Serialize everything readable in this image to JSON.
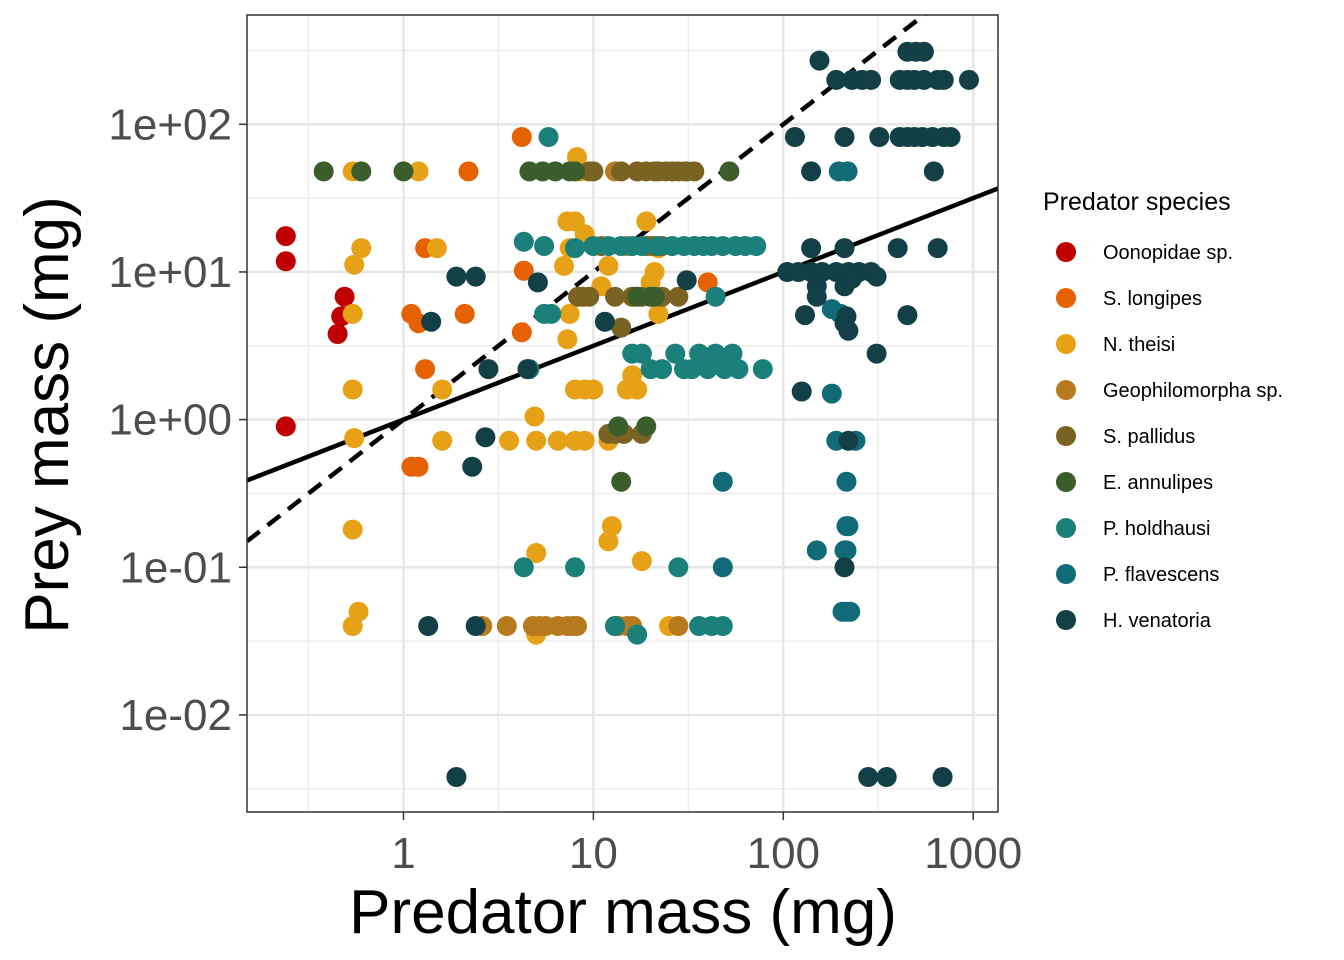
{
  "chart_data": {
    "type": "scatter",
    "xlabel": "Predator mass (mg)",
    "ylabel": "Prey mass (mg)",
    "xscale": "log10",
    "yscale": "log10",
    "xlim": [
      0.15,
      1350
    ],
    "ylim": [
      0.0022,
      550
    ],
    "x_ticks": [
      1,
      10,
      100,
      1000
    ],
    "x_tick_labels": [
      "1",
      "10",
      "100",
      "1000"
    ],
    "y_ticks": [
      0.01,
      0.1,
      1,
      10,
      100
    ],
    "y_tick_labels": [
      "1e-02",
      "1e-01",
      "1e+00",
      "1e+01",
      "1e+02"
    ],
    "grid": true,
    "legend": {
      "title": "Predator species",
      "placement": "right"
    },
    "series": [
      {
        "name": "Oonopidae sp.",
        "color": "#C00000",
        "points": [
          [
            0.24,
            17.5
          ],
          [
            0.24,
            11.8
          ],
          [
            0.24,
            0.9
          ],
          [
            0.49,
            6.8
          ],
          [
            0.47,
            5.0
          ],
          [
            0.45,
            3.8
          ]
        ]
      },
      {
        "name": "S. longipes",
        "color": "#E66101",
        "points": [
          [
            4.2,
            82
          ],
          [
            2.2,
            48
          ],
          [
            1.3,
            14.5
          ],
          [
            4.3,
            10.2
          ],
          [
            1.1,
            5.2
          ],
          [
            1.2,
            4.5
          ],
          [
            2.1,
            5.2
          ],
          [
            1.3,
            2.2
          ],
          [
            4.2,
            3.9
          ],
          [
            1.1,
            0.48
          ],
          [
            1.2,
            0.48
          ],
          [
            40,
            8.5
          ],
          [
            17,
            48
          ]
        ]
      },
      {
        "name": "N. theisi",
        "color": "#E6A117",
        "points": [
          [
            0.54,
            48
          ],
          [
            1.2,
            48
          ],
          [
            0.6,
            14.5
          ],
          [
            0.55,
            11.2
          ],
          [
            0.54,
            5.2
          ],
          [
            0.54,
            1.6
          ],
          [
            0.55,
            0.75
          ],
          [
            0.54,
            0.18
          ],
          [
            0.58,
            0.05
          ],
          [
            0.54,
            0.04
          ],
          [
            1.5,
            14.5
          ],
          [
            1.6,
            1.6
          ],
          [
            1.6,
            0.72
          ],
          [
            3.6,
            0.72
          ],
          [
            4.5,
            2.2
          ],
          [
            4.9,
            1.05
          ],
          [
            5,
            0.72
          ],
          [
            5,
            0.125
          ],
          [
            5,
            0.035
          ],
          [
            7.3,
            22
          ],
          [
            7.5,
            14.5
          ],
          [
            8,
            22
          ],
          [
            8.2,
            60
          ],
          [
            8.5,
            48
          ],
          [
            9,
            18
          ],
          [
            7,
            11
          ],
          [
            7.5,
            5.2
          ],
          [
            7.3,
            3.5
          ],
          [
            8,
            1.6
          ],
          [
            9,
            1.6
          ],
          [
            10,
            1.6
          ],
          [
            9,
            0.72
          ],
          [
            11,
            8
          ],
          [
            12,
            11
          ],
          [
            12.5,
            0.19
          ],
          [
            12,
            0.15
          ],
          [
            15,
            1.6
          ],
          [
            16,
            2
          ],
          [
            17,
            1.6
          ],
          [
            18,
            0.11
          ],
          [
            20,
            8.5
          ],
          [
            21,
            10
          ],
          [
            19,
            22
          ],
          [
            22,
            14.5
          ],
          [
            22,
            5.2
          ],
          [
            25,
            0.04
          ],
          [
            6.5,
            0.72
          ],
          [
            8,
            0.72
          ],
          [
            12,
            0.72
          ]
        ]
      },
      {
        "name": "Geophilomorpha sp.",
        "color": "#B77A1E",
        "points": [
          [
            2.6,
            0.04
          ],
          [
            3.5,
            0.04
          ],
          [
            4.8,
            0.04
          ],
          [
            5.2,
            0.04
          ],
          [
            5.6,
            0.04
          ],
          [
            6.5,
            0.04
          ],
          [
            7.3,
            0.04
          ],
          [
            7.8,
            0.04
          ],
          [
            8.2,
            0.04
          ],
          [
            13,
            0.04
          ],
          [
            13.5,
            0.04
          ],
          [
            15,
            0.04
          ],
          [
            16,
            0.04
          ],
          [
            28,
            0.04
          ],
          [
            15,
            15
          ],
          [
            20,
            15
          ],
          [
            22,
            15
          ],
          [
            13,
            48
          ],
          [
            30,
            48
          ]
        ]
      },
      {
        "name": "S. pallidus",
        "color": "#7A6322",
        "points": [
          [
            8.3,
            6.8
          ],
          [
            8.8,
            6.8
          ],
          [
            9.5,
            6.8
          ],
          [
            13,
            6.8
          ],
          [
            14,
            4.2
          ],
          [
            14.5,
            0.8
          ],
          [
            16,
            6.8
          ],
          [
            18,
            6.8
          ],
          [
            23,
            6.8
          ],
          [
            28,
            6.8
          ],
          [
            12,
            0.8
          ],
          [
            13,
            0.8
          ],
          [
            18,
            0.8
          ],
          [
            19,
            15
          ],
          [
            21,
            15
          ],
          [
            23,
            15
          ],
          [
            11,
            15
          ],
          [
            9.5,
            48
          ],
          [
            10,
            48
          ],
          [
            14,
            48
          ],
          [
            17,
            48
          ],
          [
            19,
            48
          ],
          [
            21,
            48
          ],
          [
            22,
            48
          ],
          [
            24,
            48
          ],
          [
            26,
            48
          ],
          [
            28,
            48
          ],
          [
            31,
            48
          ],
          [
            34,
            48
          ]
        ]
      },
      {
        "name": "E. annulipes",
        "color": "#3B5C2B",
        "points": [
          [
            0.38,
            48
          ],
          [
            0.6,
            48
          ],
          [
            1,
            48
          ],
          [
            4.6,
            48
          ],
          [
            5.4,
            48
          ],
          [
            6.3,
            48
          ],
          [
            7.5,
            48
          ],
          [
            8,
            48
          ],
          [
            52,
            48
          ],
          [
            14,
            0.38
          ],
          [
            13.5,
            0.9
          ],
          [
            19,
            0.9
          ],
          [
            17,
            6.8
          ],
          [
            20,
            6.8
          ],
          [
            21,
            6.8
          ]
        ]
      },
      {
        "name": "P. holdhausi",
        "color": "#1B7F7A",
        "points": [
          [
            5.8,
            82
          ],
          [
            4.3,
            16
          ],
          [
            5.5,
            15
          ],
          [
            8,
            14.5
          ],
          [
            10,
            15
          ],
          [
            12,
            15
          ],
          [
            14,
            15
          ],
          [
            16,
            15
          ],
          [
            18,
            15
          ],
          [
            22,
            15
          ],
          [
            26,
            15
          ],
          [
            30,
            15
          ],
          [
            34,
            15
          ],
          [
            38,
            15
          ],
          [
            42,
            15
          ],
          [
            48,
            15
          ],
          [
            56,
            15
          ],
          [
            63,
            15
          ],
          [
            72,
            15
          ],
          [
            4.6,
            2.2
          ],
          [
            5.5,
            5.2
          ],
          [
            6,
            5.2
          ],
          [
            16,
            2.8
          ],
          [
            20,
            2.2
          ],
          [
            23,
            2.2
          ],
          [
            27,
            2.8
          ],
          [
            30,
            2.2
          ],
          [
            33,
            2.2
          ],
          [
            36,
            2.8
          ],
          [
            40,
            2.2
          ],
          [
            44,
            2.8
          ],
          [
            49,
            2.2
          ],
          [
            54,
            2.8
          ],
          [
            58,
            2.2
          ],
          [
            78,
            2.2
          ],
          [
            4.3,
            0.1
          ],
          [
            8,
            0.1
          ],
          [
            13,
            0.04
          ],
          [
            17,
            0.035
          ],
          [
            28,
            0.1
          ],
          [
            36,
            0.04
          ],
          [
            42,
            0.04
          ],
          [
            48,
            0.04
          ],
          [
            44,
            6.8
          ],
          [
            18,
            2.8
          ]
        ]
      },
      {
        "name": "P. flavescens",
        "color": "#106A78",
        "points": [
          [
            196,
            48
          ],
          [
            218,
            48
          ],
          [
            180,
            5.6
          ],
          [
            200,
            5.2
          ],
          [
            180,
            1.5
          ],
          [
            190,
            0.72
          ],
          [
            240,
            0.72
          ],
          [
            215,
            0.38
          ],
          [
            215,
            0.19
          ],
          [
            220,
            0.19
          ],
          [
            210,
            0.13
          ],
          [
            215,
            0.13
          ],
          [
            150,
            0.13
          ],
          [
            205,
            0.05
          ],
          [
            215,
            0.05
          ],
          [
            225,
            0.05
          ],
          [
            48,
            0.38
          ],
          [
            48,
            0.1
          ]
        ]
      },
      {
        "name": "H. venatoria",
        "color": "#133F47",
        "points": [
          [
            155,
            270
          ],
          [
            190,
            200
          ],
          [
            230,
            200
          ],
          [
            260,
            200
          ],
          [
            290,
            200
          ],
          [
            410,
            200
          ],
          [
            450,
            200
          ],
          [
            490,
            200
          ],
          [
            550,
            200
          ],
          [
            650,
            200
          ],
          [
            700,
            200
          ],
          [
            950,
            200
          ],
          [
            450,
            310
          ],
          [
            500,
            310
          ],
          [
            550,
            310
          ],
          [
            115,
            82
          ],
          [
            210,
            82
          ],
          [
            320,
            82
          ],
          [
            410,
            82
          ],
          [
            450,
            82
          ],
          [
            490,
            82
          ],
          [
            540,
            82
          ],
          [
            610,
            82
          ],
          [
            700,
            82
          ],
          [
            760,
            82
          ],
          [
            140,
            48
          ],
          [
            620,
            48
          ],
          [
            1.9,
            9.3
          ],
          [
            2.4,
            9.3
          ],
          [
            1.4,
            4.6
          ],
          [
            5.1,
            8.5
          ],
          [
            11.5,
            4.6
          ],
          [
            31,
            8.8
          ],
          [
            105,
            10
          ],
          [
            120,
            10
          ],
          [
            140,
            10
          ],
          [
            160,
            10
          ],
          [
            190,
            10
          ],
          [
            220,
            10
          ],
          [
            250,
            10
          ],
          [
            290,
            10
          ],
          [
            310,
            9.3
          ],
          [
            140,
            14.5
          ],
          [
            210,
            14.5
          ],
          [
            400,
            14.5
          ],
          [
            650,
            14.5
          ],
          [
            150,
            8
          ],
          [
            210,
            8
          ],
          [
            150,
            6.8
          ],
          [
            230,
            9
          ],
          [
            210,
            4.5
          ],
          [
            215,
            5
          ],
          [
            220,
            4
          ],
          [
            130,
            5.1
          ],
          [
            450,
            5.1
          ],
          [
            310,
            2.8
          ],
          [
            125,
            1.55
          ],
          [
            2.7,
            0.76
          ],
          [
            220,
            0.72
          ],
          [
            2.8,
            2.2
          ],
          [
            2.3,
            0.48
          ],
          [
            1.9,
            0.0038
          ],
          [
            280,
            0.0038
          ],
          [
            350,
            0.0038
          ],
          [
            690,
            0.0038
          ],
          [
            1.35,
            0.04
          ],
          [
            2.4,
            0.04
          ],
          [
            4.5,
            2.2
          ],
          [
            210,
            0.1
          ]
        ]
      }
    ],
    "reference_lines": [
      {
        "style": "dashed",
        "color": "#000000",
        "slope": 1,
        "intercept": 0
      },
      {
        "style": "solid",
        "color": "#000000",
        "slope": 0.5,
        "intercept": 0
      }
    ]
  }
}
